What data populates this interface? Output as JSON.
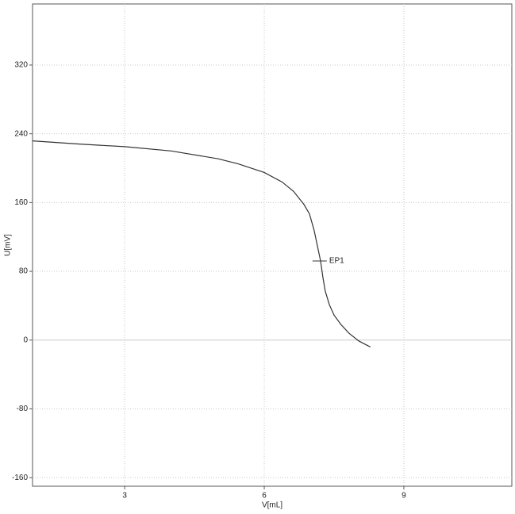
{
  "chart_data": {
    "type": "line",
    "x_label": "V[mL]",
    "y_label": "U[mV]",
    "x": [
      1.02,
      2.03,
      3,
      4,
      5,
      5.44,
      6,
      6.38,
      6.63,
      6.85,
      6.97,
      7.07,
      7.14,
      7.21,
      7.26,
      7.31,
      7.4,
      7.5,
      7.65,
      7.82,
      8.03,
      8.28
    ],
    "series": [
      {
        "name": "U",
        "color": "#333333",
        "values": [
          231.7,
          228,
          225,
          220,
          211,
          205,
          195,
          184,
          173,
          158,
          147,
          128,
          110,
          92,
          73,
          57,
          41,
          29,
          18,
          8,
          -1,
          -8
        ]
      }
    ],
    "annotations": [
      {
        "label": "EP1",
        "x": 7.19,
        "y": 92
      }
    ],
    "xlim": [
      1.02,
      11.32
    ],
    "ylim": [
      -170,
      391
    ],
    "xticks": [
      3,
      6,
      9
    ],
    "yticks": [
      -160,
      -80,
      0,
      80,
      160,
      240,
      320
    ],
    "grid": true
  }
}
